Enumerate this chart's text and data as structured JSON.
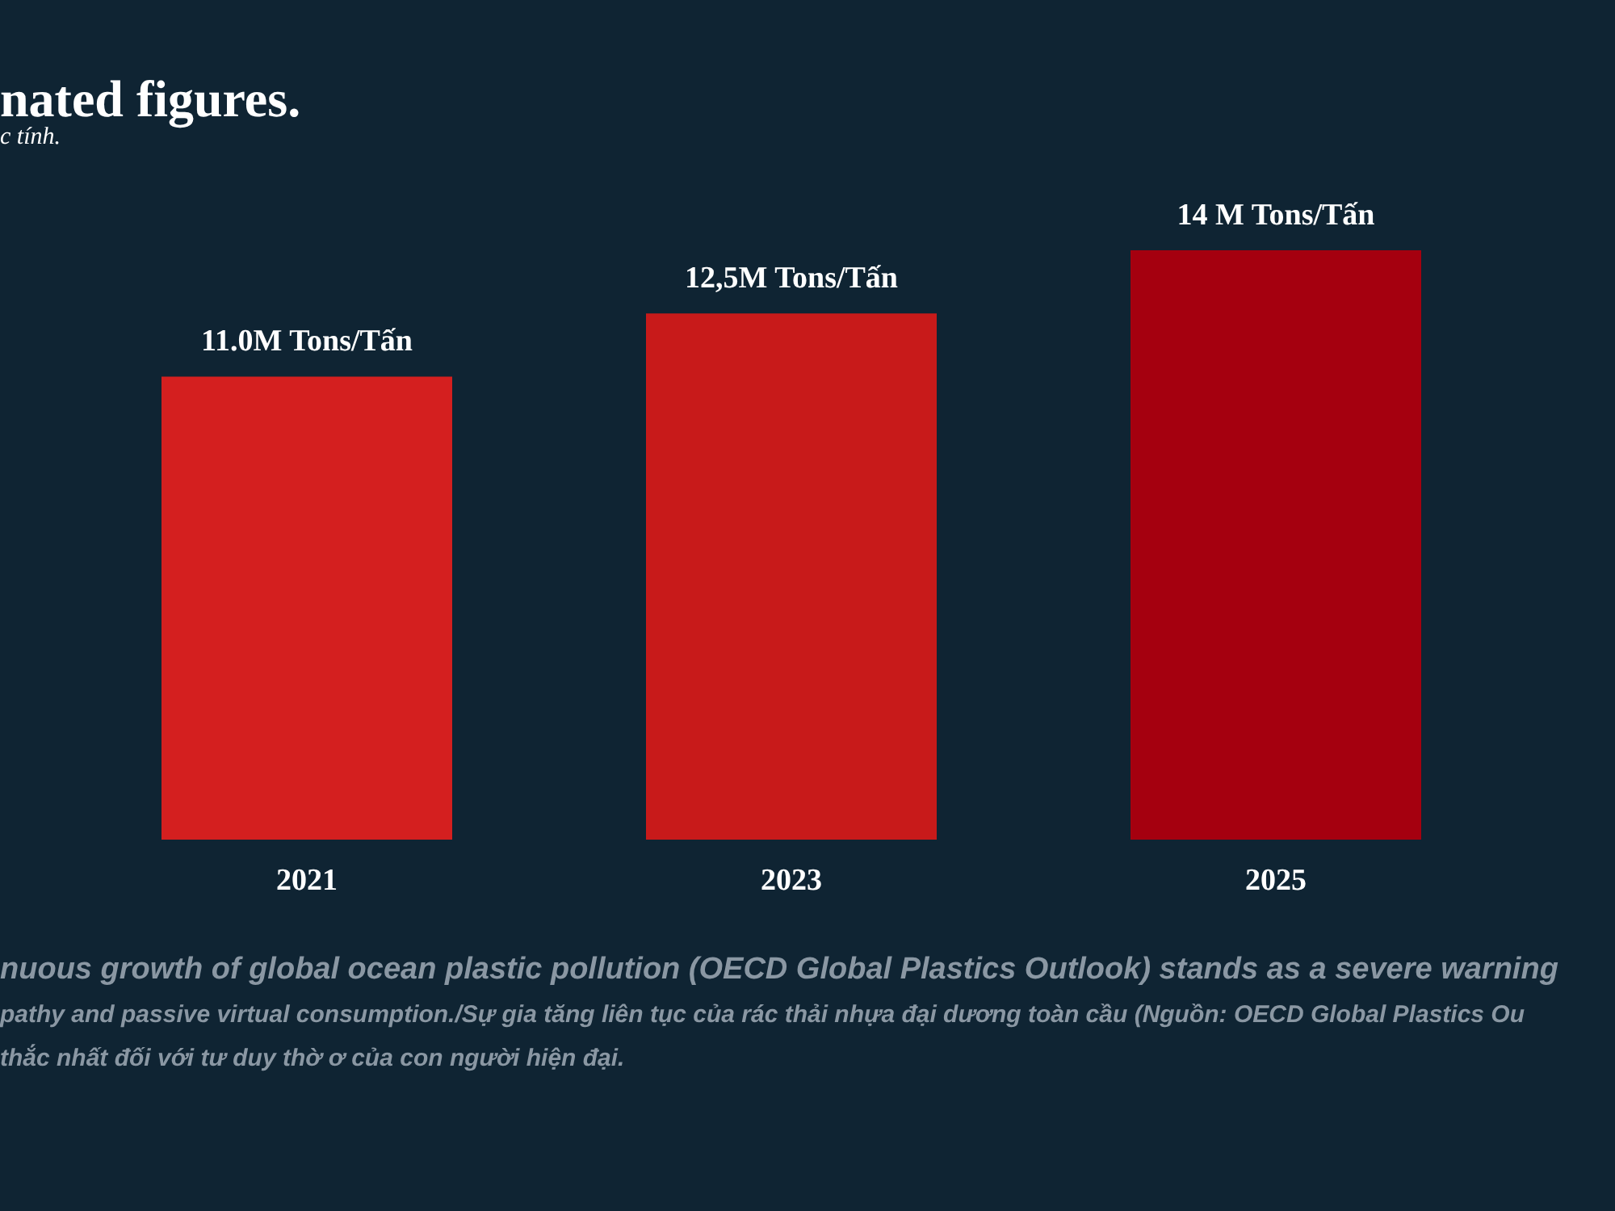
{
  "chart_data": {
    "type": "bar",
    "title": "nated figures.",
    "subtitle": "c tính.",
    "categories": [
      "2021",
      "2023",
      "2025"
    ],
    "values": [
      11.0,
      12.5,
      14
    ],
    "value_labels": [
      "11.0M Tons/Tấn",
      "12,5M Tons/Tấn",
      "14 M Tons/Tấn"
    ],
    "colors": [
      "#d41f1f",
      "#c81a1a",
      "#a5000f"
    ],
    "annotations": [
      "nuous growth of global ocean plastic pollution (OECD Global Plastics Outlook) stands as a severe warning",
      "pathy and passive virtual consumption./Sự gia tăng liên tục của rác thải nhựa đại dương toàn cầu (Nguồn: OECD Global Plastics Ou",
      "thắc nhất đối với tư duy thờ ơ của con người hiện đại."
    ]
  }
}
